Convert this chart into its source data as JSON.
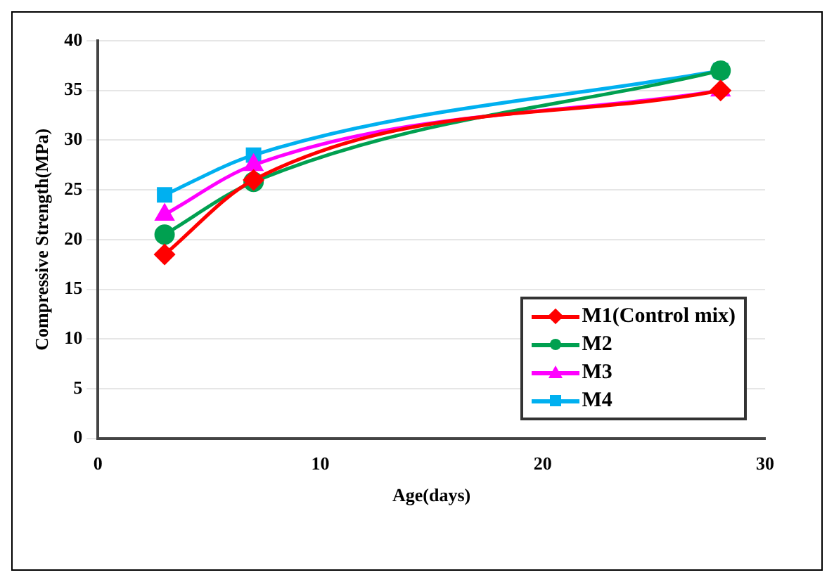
{
  "chart_data": {
    "type": "line",
    "xlabel": "Age(days)",
    "ylabel": "Compressive Strength(MPa)",
    "x": [
      3,
      7,
      28
    ],
    "series": [
      {
        "name": "M1(Control mix)",
        "color": "#ff0000",
        "marker": "diamond",
        "values": [
          18.5,
          26,
          35
        ]
      },
      {
        "name": "M2",
        "color": "#00a050",
        "marker": "circle",
        "values": [
          20.5,
          25.8,
          37
        ]
      },
      {
        "name": "M3",
        "color": "#ff00ff",
        "marker": "triangle",
        "values": [
          22.5,
          27.5,
          35
        ]
      },
      {
        "name": "M4",
        "color": "#00b0f0",
        "marker": "square",
        "values": [
          24.5,
          28.5,
          37
        ]
      }
    ],
    "xlim": [
      0,
      30
    ],
    "xticks": [
      0,
      10,
      20,
      30
    ],
    "ylim": [
      0,
      40
    ],
    "yticks": [
      0,
      5,
      10,
      15,
      20,
      25,
      30,
      35,
      40
    ],
    "grid": "y",
    "legend": "bottom right"
  }
}
